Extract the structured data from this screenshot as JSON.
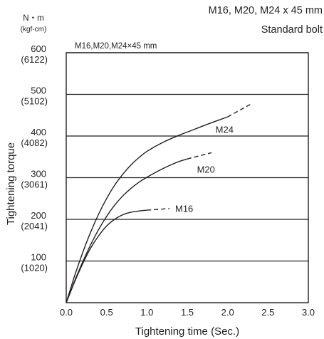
{
  "header": {
    "title_line1": "M16, M20, M24 x 45 mm",
    "title_line2": "Standard bolt"
  },
  "chart_data": {
    "type": "line",
    "inner_title": "M16,M20,M24×45 mm",
    "xlabel": "Tightening time (Sec.)",
    "ylabel": "Tightening torque",
    "y_unit_primary": "N・m",
    "y_unit_secondary": "(kgf-cm)",
    "xlim": [
      0.0,
      3.0
    ],
    "ylim": [
      0,
      600
    ],
    "x_ticks": [
      "0.0",
      "0.5",
      "1.0",
      "1.5",
      "2.0",
      "2.5",
      "3.0"
    ],
    "y_ticks": [
      {
        "value": 100,
        "label": "100",
        "sub": "(1020)"
      },
      {
        "value": 200,
        "label": "200",
        "sub": "(2041)"
      },
      {
        "value": 300,
        "label": "300",
        "sub": "(3061)"
      },
      {
        "value": 400,
        "label": "400",
        "sub": "(4082)"
      },
      {
        "value": 500,
        "label": "500",
        "sub": "(5102)"
      },
      {
        "value": 600,
        "label": "600",
        "sub": "(6122)"
      }
    ],
    "grid": "horizontal",
    "series": [
      {
        "name": "M24",
        "solid": [
          [
            0,
            0
          ],
          [
            0.1,
            62
          ],
          [
            0.2,
            118
          ],
          [
            0.3,
            168
          ],
          [
            0.4,
            212
          ],
          [
            0.5,
            250
          ],
          [
            0.6,
            282
          ],
          [
            0.7,
            308
          ],
          [
            0.8,
            330
          ],
          [
            0.9,
            348
          ],
          [
            1.0,
            363
          ],
          [
            1.2,
            385
          ],
          [
            1.4,
            402
          ],
          [
            1.6,
            417
          ],
          [
            1.8,
            432
          ],
          [
            2.0,
            446
          ]
        ],
        "dashed": [
          [
            2.0,
            446
          ],
          [
            2.3,
            478
          ]
        ],
        "label_at": [
          1.85,
          408
        ]
      },
      {
        "name": "M20",
        "solid": [
          [
            0,
            0
          ],
          [
            0.1,
            50
          ],
          [
            0.2,
            96
          ],
          [
            0.3,
            138
          ],
          [
            0.4,
            175
          ],
          [
            0.5,
            207
          ],
          [
            0.6,
            234
          ],
          [
            0.7,
            256
          ],
          [
            0.8,
            274
          ],
          [
            0.9,
            289
          ],
          [
            1.0,
            301
          ],
          [
            1.1,
            312
          ],
          [
            1.2,
            322
          ],
          [
            1.3,
            331
          ],
          [
            1.4,
            339
          ],
          [
            1.5,
            345
          ]
        ],
        "dashed": [
          [
            1.5,
            345
          ],
          [
            1.8,
            360
          ]
        ],
        "label_at": [
          1.62,
          312
        ]
      },
      {
        "name": "M16",
        "solid": [
          [
            0,
            0
          ],
          [
            0.1,
            48
          ],
          [
            0.2,
            92
          ],
          [
            0.3,
            130
          ],
          [
            0.4,
            160
          ],
          [
            0.5,
            184
          ],
          [
            0.6,
            200
          ],
          [
            0.7,
            211
          ],
          [
            0.8,
            217
          ],
          [
            0.9,
            220
          ],
          [
            1.0,
            222
          ]
        ],
        "dashed": [
          [
            1.0,
            222
          ],
          [
            1.28,
            226
          ]
        ],
        "label_at": [
          1.35,
          218
        ]
      }
    ],
    "colors": {
      "line": "#231f20",
      "background": "#ffffff"
    }
  }
}
